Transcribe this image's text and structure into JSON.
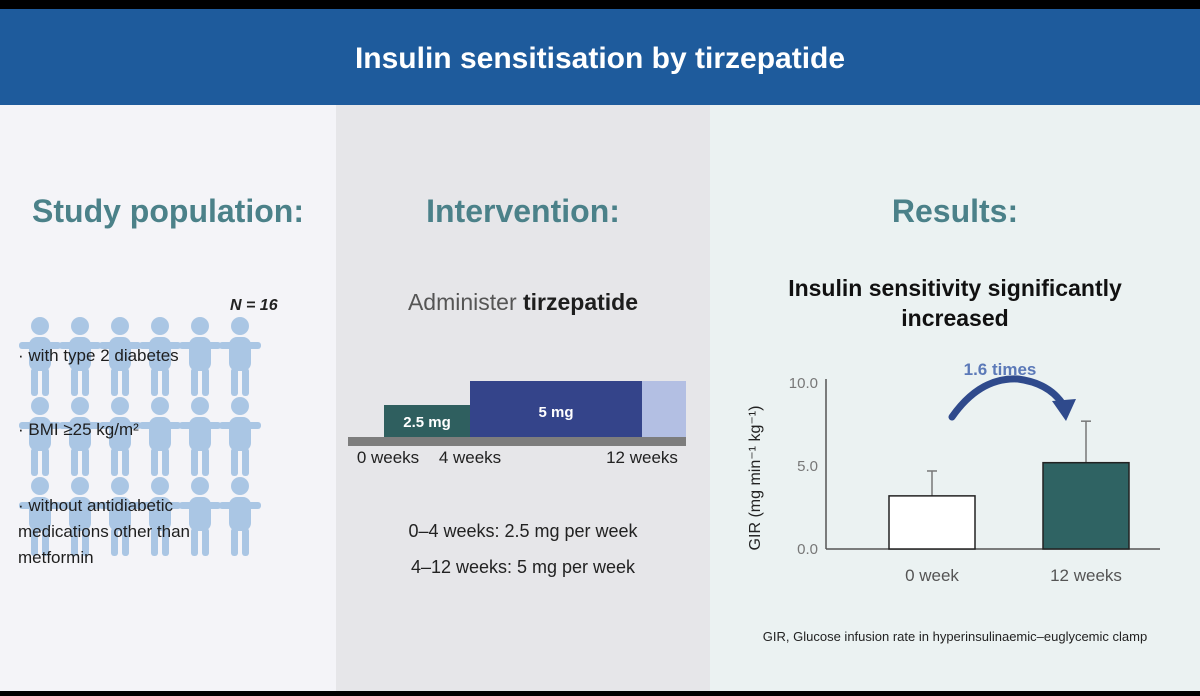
{
  "header": {
    "title": "Insulin sensitisation by tirzepatide"
  },
  "population": {
    "title": "Study population:",
    "n_label": "N = 16",
    "criteria": [
      "· with type 2 diabetes",
      "· BMI ≥25 kg/m²",
      "· without antidiabetic medications other than metformin"
    ]
  },
  "intervention": {
    "title": "Intervention:",
    "administer_prefix": "Administer ",
    "drug": "tirzepatide",
    "segments": [
      {
        "label": "2.5 mg",
        "start_week": 0,
        "end_week": 4,
        "color": "#2f5f5f"
      },
      {
        "label": "5 mg",
        "start_week": 4,
        "end_week": 12,
        "color": "#34448a"
      }
    ],
    "tick_labels": [
      "0 weeks",
      "4 weeks",
      "12 weeks"
    ],
    "dose_lines": [
      "0–4 weeks: 2.5 mg per week",
      "4–12 weeks: 5 mg per week"
    ]
  },
  "results": {
    "title": "Results:",
    "subtitle": "Insulin sensitivity significantly increased",
    "footnote": "GIR, Glucose infusion rate in hyperinsulinaemic–euglycemic clamp"
  },
  "chart_data": {
    "type": "bar",
    "categories": [
      "0 week",
      "12 weeks"
    ],
    "values": [
      3.2,
      5.2
    ],
    "error_upper": [
      4.7,
      7.7
    ],
    "ylabel": "GIR (mg min⁻¹ kg⁻¹)",
    "ylim": [
      0,
      10
    ],
    "yticks": [
      "0.0",
      "5.0",
      "10.0"
    ],
    "annotation": "1.6 times",
    "bar_colors": [
      "#ffffff",
      "#2f6363"
    ],
    "arrow_color": "#2f4a8c"
  },
  "colors": {
    "header": "#1e5b9c",
    "accent_teal": "#4b8189",
    "figures": "#aac6e4"
  }
}
